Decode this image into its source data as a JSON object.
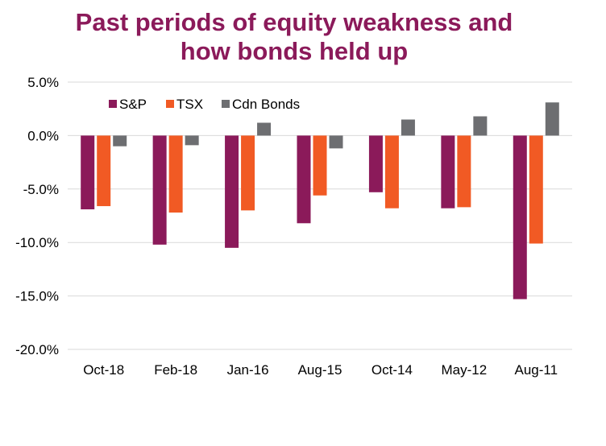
{
  "chart_data": {
    "type": "bar",
    "title_lines": [
      "Past periods of equity weakness and",
      "how bonds held up"
    ],
    "categories": [
      "Oct-18",
      "Feb-18",
      "Jan-16",
      "Aug-15",
      "Oct-14",
      "May-12",
      "Aug-11"
    ],
    "series": [
      {
        "name": "S&P",
        "color": "#8b1a5a",
        "values": [
          -6.9,
          -10.2,
          -10.5,
          -8.2,
          -5.3,
          -6.8,
          -15.3
        ]
      },
      {
        "name": "TSX",
        "color": "#f15a24",
        "values": [
          -6.6,
          -7.2,
          -7.0,
          -5.6,
          -6.8,
          -6.7,
          -10.1
        ]
      },
      {
        "name": "Cdn Bonds",
        "color": "#6d6e71",
        "values": [
          -1.0,
          -0.9,
          1.2,
          -1.2,
          1.5,
          1.8,
          3.1
        ]
      }
    ],
    "ylim": [
      -20,
      5
    ],
    "yticks": [
      5,
      0,
      -5,
      -10,
      -15,
      -20
    ],
    "ytick_labels": [
      "5.0%",
      "0.0%",
      "-5.0%",
      "-10.0%",
      "-15.0%",
      "-20.0%"
    ],
    "gridlines": true,
    "legend_position": "top-left"
  }
}
